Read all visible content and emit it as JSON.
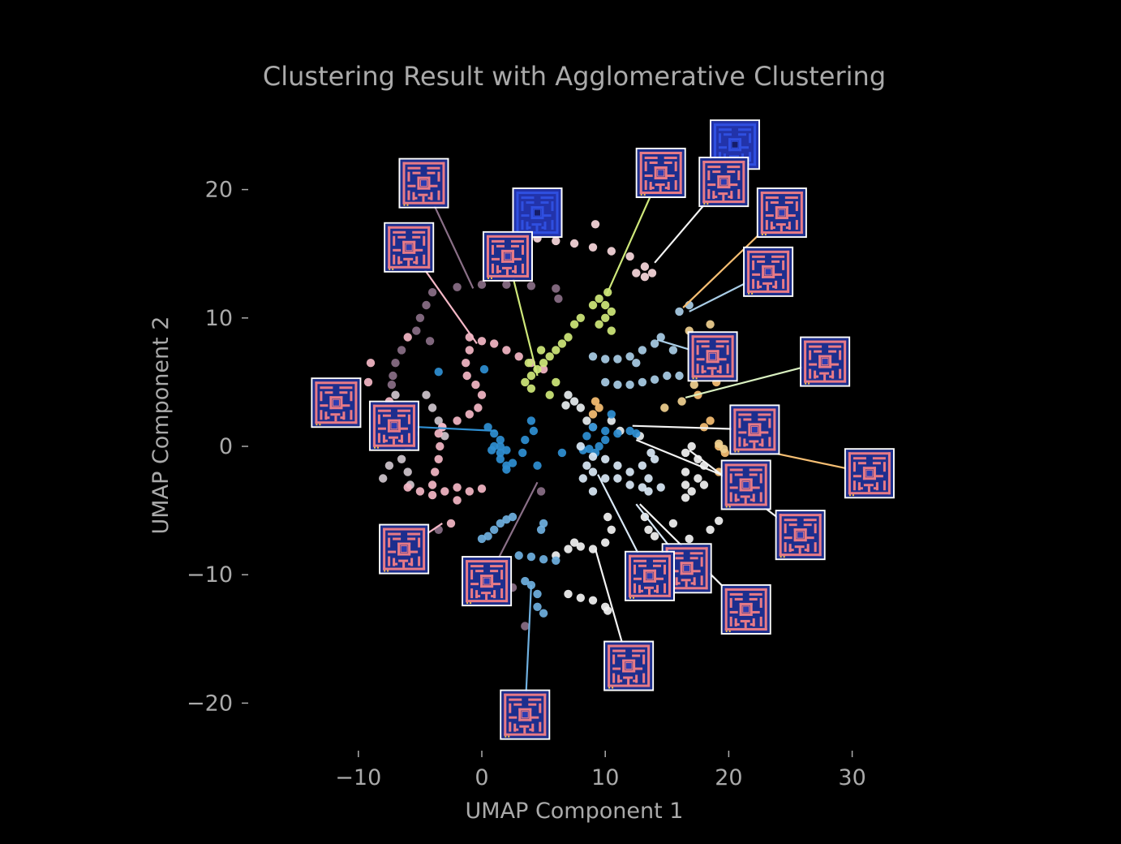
{
  "chart_data": {
    "type": "scatter",
    "title": "Clustering Result with Agglomerative Clustering",
    "xlabel": "UMAP Component 1",
    "ylabel": "UMAP Component 2",
    "xlim": [
      -10,
      30
    ],
    "ylim": [
      -20,
      20
    ],
    "xticks": [
      -10,
      0,
      10,
      20,
      30
    ],
    "yticks": [
      20,
      10,
      0,
      -10,
      -20
    ],
    "xtick_labels": [
      "−10",
      "0",
      "10",
      "20",
      "30"
    ],
    "ytick_labels": [
      "20",
      "10",
      "0",
      "−10",
      "−20"
    ],
    "background": "#000000",
    "text_color": "#aaaaaa",
    "grid": false,
    "legend": "none",
    "series": [
      {
        "color": "#8a6f87",
        "points": [
          [
            -4,
            12
          ],
          [
            -2,
            12.4
          ],
          [
            0,
            12.6
          ],
          [
            2,
            12.6
          ],
          [
            4,
            12.5
          ],
          [
            6,
            12.3
          ],
          [
            6.2,
            11.5
          ],
          [
            -4.5,
            11
          ],
          [
            -5,
            10
          ],
          [
            -5.3,
            9
          ],
          [
            -4.2,
            8.2
          ],
          [
            -6.5,
            7.5
          ],
          [
            -7,
            6.5
          ],
          [
            -7.2,
            5.5
          ],
          [
            -7.3,
            4.8
          ],
          [
            -3.5,
            -6.5
          ],
          [
            2.5,
            -11
          ],
          [
            4.8,
            -3.5
          ],
          [
            3.5,
            -14
          ]
        ]
      },
      {
        "color": "#cfc5cd",
        "points": [
          [
            -7,
            4
          ],
          [
            -6.5,
            3
          ],
          [
            -6,
            2
          ],
          [
            -5.5,
            1
          ],
          [
            -6,
            0
          ],
          [
            -6.5,
            -1
          ],
          [
            -6,
            -2
          ],
          [
            -5.8,
            -3
          ],
          [
            -4.5,
            4
          ],
          [
            -4,
            3
          ],
          [
            -3.5,
            2
          ],
          [
            -3.2,
            1.5
          ],
          [
            -3,
            0.8
          ],
          [
            -7.5,
            -1.5
          ],
          [
            -8,
            -2.5
          ]
        ]
      },
      {
        "color": "#f4b7c6",
        "points": [
          [
            -1,
            8.5
          ],
          [
            0,
            8.2
          ],
          [
            1,
            8
          ],
          [
            2,
            7.5
          ],
          [
            3,
            7
          ],
          [
            4,
            6.5
          ],
          [
            5,
            6
          ],
          [
            -1,
            7.5
          ],
          [
            -1.3,
            6.5
          ],
          [
            -1.2,
            5.5
          ],
          [
            -0.5,
            4.8
          ],
          [
            0,
            4
          ],
          [
            -0.3,
            3
          ],
          [
            -1,
            2.5
          ],
          [
            -2,
            2
          ],
          [
            -3.2,
            1.5
          ],
          [
            -3.5,
            1
          ],
          [
            -3.4,
            0
          ],
          [
            -3.5,
            -1
          ],
          [
            -3.8,
            -2
          ],
          [
            -4,
            -3
          ],
          [
            -6,
            -3.2
          ],
          [
            -5,
            -3.5
          ],
          [
            -4,
            -3.8
          ],
          [
            -3,
            -3.5
          ],
          [
            -2,
            -3.2
          ],
          [
            -1,
            -3.5
          ],
          [
            0,
            -3.3
          ],
          [
            -2,
            -4.2
          ],
          [
            -9,
            6.5
          ],
          [
            -9.2,
            5
          ],
          [
            -7.5,
            3.5
          ],
          [
            -6,
            8.5
          ],
          [
            -2.5,
            -6
          ]
        ]
      },
      {
        "color": "#f8d8dc",
        "points": [
          [
            3.5,
            16.5
          ],
          [
            4.5,
            16.2
          ],
          [
            6,
            16
          ],
          [
            7.5,
            15.8
          ],
          [
            9,
            15.5
          ],
          [
            10.5,
            15.2
          ],
          [
            12,
            14.8
          ],
          [
            13.2,
            14
          ],
          [
            13.8,
            13.5
          ],
          [
            13.2,
            13.2
          ],
          [
            12.5,
            13.5
          ],
          [
            9.2,
            17.3
          ]
        ]
      },
      {
        "color": "#cfe87a",
        "points": [
          [
            3.5,
            5
          ],
          [
            4,
            5.5
          ],
          [
            4.5,
            6
          ],
          [
            5,
            6.5
          ],
          [
            5.5,
            7
          ],
          [
            6,
            7.5
          ],
          [
            6.5,
            8
          ],
          [
            7,
            8.5
          ],
          [
            7.5,
            9.5
          ],
          [
            8,
            10
          ],
          [
            9,
            11
          ],
          [
            9.5,
            11.5
          ],
          [
            10,
            11
          ],
          [
            10.5,
            10.5
          ],
          [
            10,
            10
          ],
          [
            9.5,
            9.5
          ],
          [
            10.5,
            9
          ],
          [
            4,
            4.5
          ],
          [
            5.5,
            4
          ],
          [
            6,
            5
          ],
          [
            3.8,
            6.5
          ],
          [
            4.8,
            7.5
          ],
          [
            10.2,
            12
          ]
        ]
      },
      {
        "color": "#a9cde6",
        "points": [
          [
            9,
            7
          ],
          [
            10,
            6.8
          ],
          [
            11,
            6.8
          ],
          [
            12,
            7
          ],
          [
            13,
            7.5
          ],
          [
            14,
            8
          ],
          [
            14.5,
            8.5
          ],
          [
            12.5,
            6.5
          ],
          [
            15.5,
            7.5
          ],
          [
            16,
            10.5
          ],
          [
            16.8,
            11
          ],
          [
            10,
            5
          ],
          [
            11,
            4.8
          ],
          [
            12,
            4.8
          ],
          [
            13,
            5
          ],
          [
            14,
            5.2
          ],
          [
            15,
            5.5
          ],
          [
            16,
            5.5
          ]
        ]
      },
      {
        "color": "#e8eef0",
        "points": [
          [
            7,
            4
          ],
          [
            7.5,
            3.5
          ],
          [
            8,
            3
          ],
          [
            8.5,
            2
          ],
          [
            9,
            1.5
          ],
          [
            10.5,
            2
          ],
          [
            6.8,
            3.2
          ],
          [
            11.2,
            1.2
          ],
          [
            12.8,
            0.8
          ]
        ]
      },
      {
        "color": "#f3f3f3",
        "points": [
          [
            6,
            -8.5
          ],
          [
            7,
            -8
          ],
          [
            7.5,
            -7.5
          ],
          [
            8,
            -7.8
          ],
          [
            9,
            -8
          ],
          [
            10,
            -7.5
          ],
          [
            10.5,
            -6.5
          ],
          [
            10.2,
            -5.5
          ],
          [
            7,
            -11.5
          ],
          [
            8,
            -11.8
          ],
          [
            9,
            -12
          ],
          [
            10,
            -12.5
          ],
          [
            10.2,
            -12.8
          ],
          [
            13.2,
            -5.5
          ],
          [
            13.5,
            -6.5
          ],
          [
            14,
            -7
          ],
          [
            15.5,
            -6
          ],
          [
            16.5,
            -3
          ],
          [
            17,
            -3.5
          ],
          [
            16.5,
            -4
          ],
          [
            17.5,
            -2.5
          ],
          [
            18,
            -1.5
          ],
          [
            17.5,
            -1
          ],
          [
            16.5,
            -0.5
          ],
          [
            17,
            0
          ],
          [
            16.5,
            -2
          ],
          [
            19.2,
            -5.8
          ],
          [
            18.5,
            -6.5
          ],
          [
            18,
            -3
          ],
          [
            16.8,
            -7.2
          ]
        ]
      },
      {
        "color": "#2f8fd2",
        "points": [
          [
            0.5,
            1.5
          ],
          [
            1,
            1
          ],
          [
            1.5,
            0.5
          ],
          [
            1,
            0
          ],
          [
            0.8,
            -0.3
          ],
          [
            1.5,
            -0.5
          ],
          [
            2,
            -0.3
          ],
          [
            1.5,
            -1
          ],
          [
            2,
            -1.5
          ],
          [
            2.5,
            -1.3
          ],
          [
            1.5,
            0
          ],
          [
            4,
            2
          ],
          [
            4.2,
            1.2
          ],
          [
            3.5,
            0.5
          ],
          [
            3.3,
            -0.5
          ],
          [
            4.5,
            -1.5
          ],
          [
            2,
            -1.8
          ],
          [
            8.5,
            0.8
          ],
          [
            9,
            1.5
          ],
          [
            10,
            1.2
          ],
          [
            11,
            1
          ],
          [
            10,
            0.5
          ],
          [
            9.5,
            0
          ],
          [
            8.7,
            -0.2
          ],
          [
            9.2,
            -0.5
          ],
          [
            10.5,
            2.5
          ],
          [
            12,
            1.2
          ],
          [
            12.5,
            1
          ],
          [
            6.5,
            -0.5
          ],
          [
            8.2,
            -0.3
          ],
          [
            -3.5,
            5.8
          ],
          [
            0.2,
            6
          ]
        ]
      },
      {
        "color": "#6fb0e0",
        "points": [
          [
            0,
            -7.2
          ],
          [
            0.5,
            -7
          ],
          [
            1,
            -6.5
          ],
          [
            1.5,
            -6
          ],
          [
            2,
            -5.7
          ],
          [
            2.5,
            -5.5
          ],
          [
            3,
            -8.5
          ],
          [
            4,
            -8.6
          ],
          [
            5,
            -8.8
          ],
          [
            6,
            -8.9
          ],
          [
            3.5,
            -10.5
          ],
          [
            4,
            -10.8
          ],
          [
            4.5,
            -11.5
          ],
          [
            4.5,
            -12.5
          ],
          [
            5,
            -13
          ],
          [
            5,
            -6
          ],
          [
            4.8,
            -6.5
          ]
        ]
      },
      {
        "color": "#d9e8f6",
        "points": [
          [
            8,
            0
          ],
          [
            9,
            -0.8
          ],
          [
            10,
            -1
          ],
          [
            11,
            -1.5
          ],
          [
            12,
            -2
          ],
          [
            13,
            -1.5
          ],
          [
            14,
            -1
          ],
          [
            13.5,
            -2.5
          ],
          [
            13,
            -3.2
          ],
          [
            12,
            -3
          ],
          [
            11,
            -2.5
          ],
          [
            10,
            -2.5
          ],
          [
            9,
            -2
          ],
          [
            8.5,
            -1.5
          ],
          [
            8.2,
            -2.5
          ],
          [
            9,
            -3.5
          ],
          [
            13.5,
            -3.5
          ],
          [
            14.5,
            -3.2
          ],
          [
            13.7,
            -0.5
          ]
        ]
      },
      {
        "color": "#f7bf73",
        "points": [
          [
            9,
            2.5
          ],
          [
            9.5,
            3
          ],
          [
            9.2,
            3.5
          ],
          [
            19.2,
            0
          ],
          [
            19.7,
            -0.5
          ],
          [
            18,
            1.5
          ],
          [
            19,
            5
          ],
          [
            17.5,
            4
          ],
          [
            19.2,
            -2
          ],
          [
            18.5,
            2
          ]
        ]
      },
      {
        "color": "#f0d090",
        "points": [
          [
            19.2,
            0.2
          ],
          [
            19.6,
            -0.2
          ],
          [
            18.5,
            9.5
          ],
          [
            17.2,
            4.8
          ],
          [
            16.2,
            3.5
          ],
          [
            16.8,
            9
          ],
          [
            14.8,
            3
          ]
        ]
      }
    ],
    "annotations": [
      {
        "variant": "b",
        "x": 4.5,
        "y": 18.2,
        "to": [
          3,
          16.8
        ],
        "line": "#f8d8dc"
      },
      {
        "variant": "r",
        "x": -4.7,
        "y": 20.5,
        "to": [
          -0.7,
          12.3
        ],
        "line": "#8a6f87"
      },
      {
        "variant": "r",
        "x": 2.1,
        "y": 14.8,
        "to": [
          4.5,
          5.5
        ],
        "line": "#cfe87a"
      },
      {
        "variant": "r",
        "x": -5.9,
        "y": 15.5,
        "to": [
          -0.4,
          8
        ],
        "line": "#f4b7c6"
      },
      {
        "variant": "r",
        "x": 14.5,
        "y": 21.3,
        "to": [
          10.1,
          11.8
        ],
        "line": "#cfe87a"
      },
      {
        "variant": "b",
        "x": 20.5,
        "y": 23.5,
        "to": null,
        "line": null
      },
      {
        "variant": "r",
        "x": 19.6,
        "y": 20.6,
        "to": [
          14,
          14.3
        ],
        "line": "#f3f3f3"
      },
      {
        "variant": "r",
        "x": 24.3,
        "y": 18.2,
        "to": [
          16.3,
          10.8
        ],
        "line": "#f7bf73"
      },
      {
        "variant": "r",
        "x": 23.2,
        "y": 13.6,
        "to": [
          16.8,
          10.5
        ],
        "line": "#a9cde6"
      },
      {
        "variant": "r",
        "x": 18.7,
        "y": 7,
        "to": [
          14.2,
          8.3
        ],
        "line": "#a9cde6"
      },
      {
        "variant": "r",
        "x": 27.8,
        "y": 6.6,
        "to": [
          16.5,
          3.8
        ],
        "line": "#d9f0c0"
      },
      {
        "variant": "r",
        "x": 22.1,
        "y": 1.3,
        "to": [
          12.2,
          1.6
        ],
        "line": "#f3f3f3"
      },
      {
        "variant": "r",
        "x": -11.8,
        "y": 3.4,
        "to": null,
        "line": null
      },
      {
        "variant": "r",
        "x": -7.1,
        "y": 1.6,
        "to": [
          1.2,
          1.2
        ],
        "line": "#2f8fd2"
      },
      {
        "variant": "r",
        "x": 31.4,
        "y": -2.1,
        "to": [
          20.6,
          0.1
        ],
        "line": "#f7bf73"
      },
      {
        "variant": "r",
        "x": 21.4,
        "y": -3,
        "to": [
          12.5,
          0.5
        ],
        "line": "#f3f3f3"
      },
      {
        "variant": "r",
        "x": 25.8,
        "y": -6.9,
        "to": [
          16.8,
          -0.3
        ],
        "line": "#f3f3f3"
      },
      {
        "variant": "r",
        "x": -6.3,
        "y": -8,
        "to": [
          -3.2,
          -6
        ],
        "line": "#f4b7c6"
      },
      {
        "variant": "r",
        "x": 0.4,
        "y": -10.5,
        "to": [
          4.5,
          -2.8
        ],
        "line": "#8a6f87"
      },
      {
        "variant": "r",
        "x": 16.6,
        "y": -9.5,
        "to": [
          12.5,
          -4.5
        ],
        "line": "#d9e8f6"
      },
      {
        "variant": "r",
        "x": 13.6,
        "y": -10.1,
        "to": [
          9.4,
          -2.2
        ],
        "line": "#d9e8f6"
      },
      {
        "variant": "r",
        "x": 21.4,
        "y": -12.7,
        "to": [
          12.8,
          -4.5
        ],
        "line": "#f3f3f3"
      },
      {
        "variant": "r",
        "x": 11.9,
        "y": -17.1,
        "to": [
          9.2,
          -8
        ],
        "line": "#f3f3f3"
      },
      {
        "variant": "r",
        "x": 3.5,
        "y": -20.9,
        "to": [
          4,
          -10.8
        ],
        "line": "#6fb0e0"
      }
    ]
  }
}
